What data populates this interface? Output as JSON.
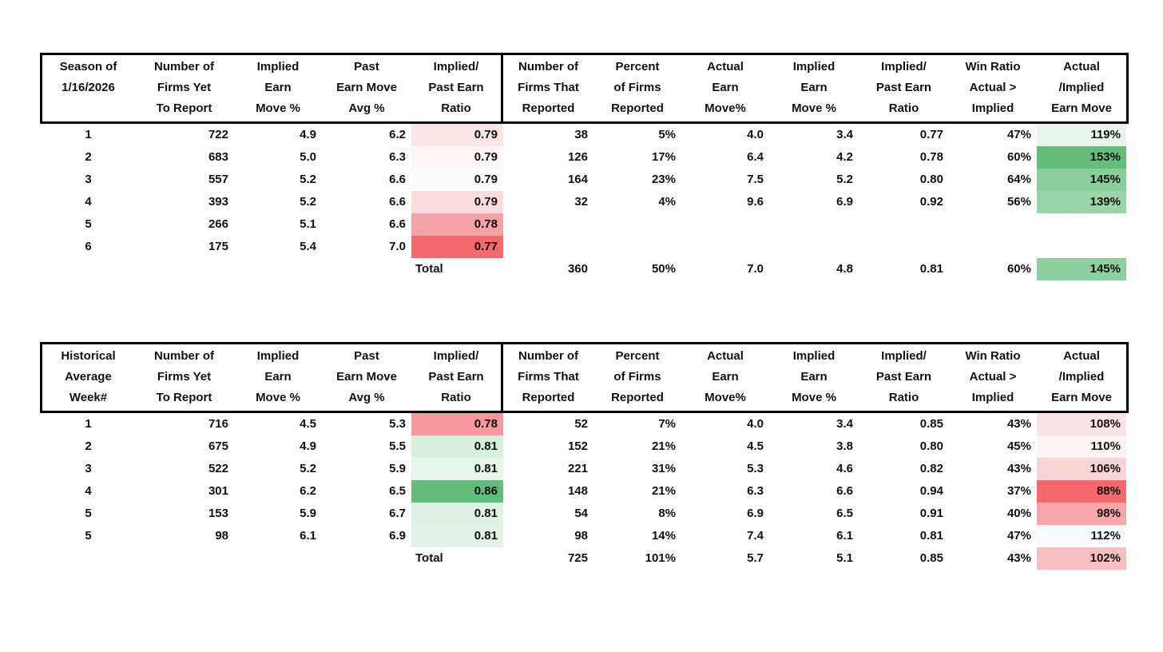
{
  "colors": {
    "header_border": "#000000",
    "text": "#111111",
    "scale_red": "#F8696B",
    "scale_white": "#FCFCFF",
    "scale_green": "#63BE7B"
  },
  "tables": [
    {
      "name": "season-table",
      "total_label": "Total",
      "columns": [
        {
          "lines": [
            "Season of",
            "1/16/2026",
            ""
          ]
        },
        {
          "lines": [
            "Number of",
            "Firms Yet",
            "To Report"
          ]
        },
        {
          "lines": [
            "Implied",
            "Earn",
            "Move %"
          ]
        },
        {
          "lines": [
            "Past",
            "Earn Move",
            "Avg %"
          ]
        },
        {
          "lines": [
            "Implied/",
            "Past Earn",
            "Ratio"
          ]
        },
        {
          "lines": [
            "Number of",
            "Firms That",
            "Reported"
          ]
        },
        {
          "lines": [
            "Percent",
            "of Firms",
            "Reported"
          ]
        },
        {
          "lines": [
            "Actual",
            "Earn",
            "Move%"
          ]
        },
        {
          "lines": [
            "Implied",
            "Earn",
            "Move %"
          ]
        },
        {
          "lines": [
            "Implied/",
            "Past Earn",
            "Ratio"
          ]
        },
        {
          "lines": [
            "Win Ratio",
            "Actual >",
            "Implied"
          ]
        },
        {
          "lines": [
            "Actual",
            "/Implied",
            "Earn Move"
          ]
        }
      ],
      "rows": [
        {
          "values": [
            "1",
            "722",
            "4.9",
            "6.2",
            "0.79",
            "38",
            "5%",
            "4.0",
            "3.4",
            "0.77",
            "47%",
            "119%"
          ],
          "fills": {
            "4": "#FBE5E7",
            "11": "#E7F3EB"
          }
        },
        {
          "values": [
            "2",
            "683",
            "5.0",
            "6.3",
            "0.79",
            "126",
            "17%",
            "6.4",
            "4.2",
            "0.78",
            "60%",
            "153%"
          ],
          "fills": {
            "4": "#FEF5F6",
            "11": "#63BE7B"
          }
        },
        {
          "values": [
            "3",
            "557",
            "5.2",
            "6.6",
            "0.79",
            "164",
            "23%",
            "7.5",
            "5.2",
            "0.80",
            "64%",
            "145%"
          ],
          "fills": {
            "4": "#FAFCFE",
            "11": "#8BCE9D"
          }
        },
        {
          "values": [
            "4",
            "393",
            "5.2",
            "6.6",
            "0.79",
            "32",
            "4%",
            "9.6",
            "6.9",
            "0.92",
            "56%",
            "139%"
          ],
          "fills": {
            "4": "#FADCDE",
            "11": "#9AD5A9"
          }
        },
        {
          "values": [
            "5",
            "266",
            "5.1",
            "6.6",
            "0.78",
            "",
            "",
            "",
            "",
            "",
            "",
            ""
          ],
          "fills": {
            "4": "#F5A2A6"
          }
        },
        {
          "values": [
            "6",
            "175",
            "5.4",
            "7.0",
            "0.77",
            "",
            "",
            "",
            "",
            "",
            "",
            ""
          ],
          "fills": {
            "4": "#F3696E"
          }
        }
      ],
      "total": {
        "values": [
          "",
          "",
          "",
          "",
          "Total",
          "360",
          "50%",
          "7.0",
          "4.8",
          "0.81",
          "60%",
          "145%"
        ],
        "fills": {
          "11": "#8CD1A0"
        }
      }
    },
    {
      "name": "historical-table",
      "total_label": "Total",
      "columns": [
        {
          "lines": [
            "Historical",
            "Average",
            "Week#"
          ]
        },
        {
          "lines": [
            "Number of",
            "Firms Yet",
            "To Report"
          ]
        },
        {
          "lines": [
            "Implied",
            "Earn",
            "Move %"
          ]
        },
        {
          "lines": [
            "Past",
            "Earn Move",
            "Avg %"
          ]
        },
        {
          "lines": [
            "Implied/",
            "Past Earn",
            "Ratio"
          ]
        },
        {
          "lines": [
            "Number of",
            "Firms That",
            "Reported"
          ]
        },
        {
          "lines": [
            "Percent",
            "of Firms",
            "Reported"
          ]
        },
        {
          "lines": [
            "Actual",
            "Earn",
            "Move%"
          ]
        },
        {
          "lines": [
            "Implied",
            "Earn",
            "Move %"
          ]
        },
        {
          "lines": [
            "Implied/",
            "Past Earn",
            "Ratio"
          ]
        },
        {
          "lines": [
            "Win Ratio",
            "Actual >",
            "Implied"
          ]
        },
        {
          "lines": [
            "Actual",
            "/Implied",
            "Earn Move"
          ]
        }
      ],
      "rows": [
        {
          "values": [
            "1",
            "716",
            "4.5",
            "5.3",
            "0.78",
            "52",
            "7%",
            "4.0",
            "3.4",
            "0.85",
            "43%",
            "108%"
          ],
          "fills": {
            "4": "#F7989C",
            "11": "#FBE2E4"
          }
        },
        {
          "values": [
            "2",
            "675",
            "4.9",
            "5.5",
            "0.81",
            "152",
            "21%",
            "4.5",
            "3.8",
            "0.80",
            "45%",
            "110%"
          ],
          "fills": {
            "4": "#D8EEDF",
            "11": "#FEF4F5"
          }
        },
        {
          "values": [
            "3",
            "522",
            "5.2",
            "5.9",
            "0.81",
            "221",
            "31%",
            "5.3",
            "4.6",
            "0.82",
            "43%",
            "106%"
          ],
          "fills": {
            "4": "#E6F4EA",
            "11": "#F9D3D6"
          }
        },
        {
          "values": [
            "4",
            "301",
            "6.2",
            "6.5",
            "0.86",
            "148",
            "21%",
            "6.3",
            "6.6",
            "0.94",
            "37%",
            "88%"
          ],
          "fills": {
            "4": "#63BE7D",
            "11": "#F5696E"
          }
        },
        {
          "values": [
            "5",
            "153",
            "5.9",
            "6.7",
            "0.81",
            "54",
            "8%",
            "6.9",
            "6.5",
            "0.91",
            "40%",
            "98%"
          ],
          "fills": {
            "4": "#E0F1E6",
            "11": "#F7A6AA"
          }
        },
        {
          "values": [
            "5",
            "98",
            "6.1",
            "6.9",
            "0.81",
            "98",
            "14%",
            "7.4",
            "6.1",
            "0.81",
            "47%",
            "112%"
          ],
          "fills": {
            "4": "#E2F2E7",
            "11": "#FBFCFE"
          }
        }
      ],
      "total": {
        "values": [
          "",
          "",
          "",
          "",
          "Total",
          "725",
          "101%",
          "5.7",
          "5.1",
          "0.85",
          "43%",
          "102%"
        ],
        "fills": {
          "11": "#F9BEC1"
        }
      }
    }
  ]
}
